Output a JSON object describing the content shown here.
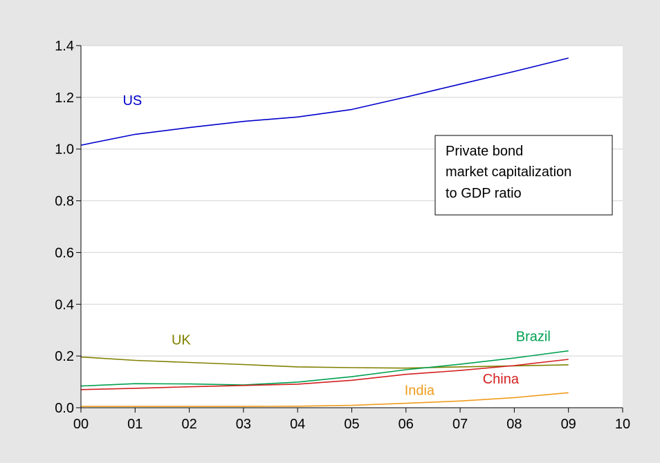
{
  "chart_data": {
    "type": "line",
    "title": "",
    "xlabel": "",
    "ylabel": "",
    "x": [
      "00",
      "01",
      "02",
      "03",
      "04",
      "05",
      "06",
      "07",
      "08",
      "09"
    ],
    "xticks": [
      "00",
      "01",
      "02",
      "03",
      "04",
      "05",
      "06",
      "07",
      "08",
      "09",
      "10"
    ],
    "xlim": [
      0,
      10
    ],
    "ylim": [
      0,
      1.4
    ],
    "yticks": [
      "0.0",
      "0.2",
      "0.4",
      "0.6",
      "0.8",
      "1.0",
      "1.2",
      "1.4"
    ],
    "grid": "horizontal",
    "annotation": [
      "Private bond",
      "market capitalization",
      "to GDP ratio"
    ],
    "series": [
      {
        "name": "US",
        "color": "#0000cc",
        "values": [
          1.015,
          1.057,
          1.083,
          1.107,
          1.124,
          1.153,
          1.201,
          1.251,
          1.3,
          1.352
        ]
      },
      {
        "name": "UK",
        "color": "#808000",
        "values": [
          0.196,
          0.183,
          0.175,
          0.167,
          0.158,
          0.155,
          0.153,
          0.158,
          0.162,
          0.166
        ]
      },
      {
        "name": "Brazil",
        "color": "#00a050",
        "values": [
          0.084,
          0.093,
          0.092,
          0.088,
          0.099,
          0.12,
          0.147,
          0.168,
          0.192,
          0.22
        ]
      },
      {
        "name": "China",
        "color": "#d42020",
        "values": [
          0.07,
          0.075,
          0.081,
          0.086,
          0.091,
          0.106,
          0.129,
          0.144,
          0.163,
          0.187
        ]
      },
      {
        "name": "India",
        "color": "#f09c1c",
        "values": [
          0.005,
          0.005,
          0.005,
          0.005,
          0.006,
          0.009,
          0.017,
          0.026,
          0.039,
          0.058
        ]
      }
    ]
  }
}
